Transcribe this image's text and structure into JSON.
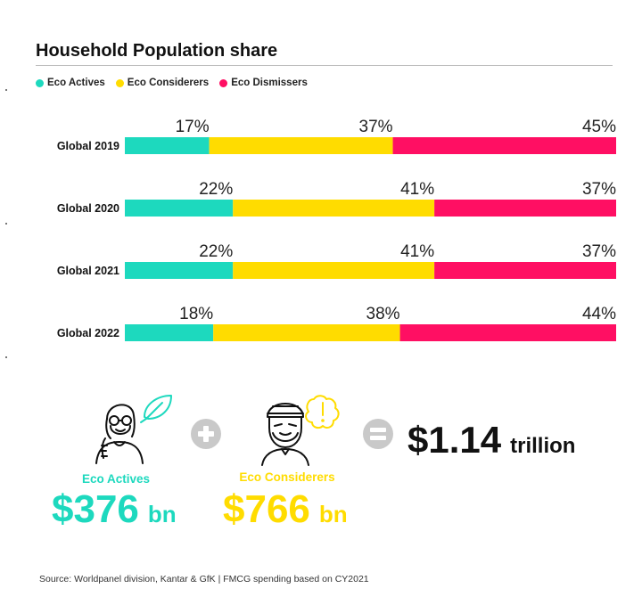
{
  "header": {
    "title": "Household Population share"
  },
  "colors": {
    "eco_actives": "#1dd9be",
    "eco_considerers": "#ffdc00",
    "eco_dismissers": "#ff0f63",
    "operator": "#c9c9c9"
  },
  "chart_data": {
    "type": "bar",
    "stacked": true,
    "orientation": "horizontal",
    "title": "Household Population share",
    "categories": [
      "Global 2019",
      "Global 2020",
      "Global 2021",
      "Global 2022"
    ],
    "series": [
      {
        "name": "Eco Actives",
        "values": [
          17,
          22,
          22,
          18
        ],
        "labels": [
          "17%",
          "22%",
          "22%",
          "18%"
        ]
      },
      {
        "name": "Eco Considerers",
        "values": [
          37,
          41,
          41,
          38
        ],
        "labels": [
          "37%",
          "41%",
          "41%",
          "38%"
        ]
      },
      {
        "name": "Eco Dismissers",
        "values": [
          45,
          37,
          37,
          44
        ],
        "labels": [
          "45%",
          "37%",
          "37%",
          "44%"
        ]
      }
    ],
    "legend": "top-left",
    "grid": false
  },
  "spending": {
    "eco_actives": {
      "label": "Eco Actives",
      "amount": "$376",
      "unit": "bn",
      "icon": "woman-leaf-icon"
    },
    "eco_considerers": {
      "label": "Eco Considerers",
      "amount": "$766",
      "unit": "bn",
      "icon": "man-alert-icon"
    },
    "total": {
      "amount": "$1.14",
      "unit": "trillion"
    }
  },
  "footer": {
    "source": "Source: Worldpanel division, Kantar & GfK | FMCG spending based on CY2021"
  }
}
